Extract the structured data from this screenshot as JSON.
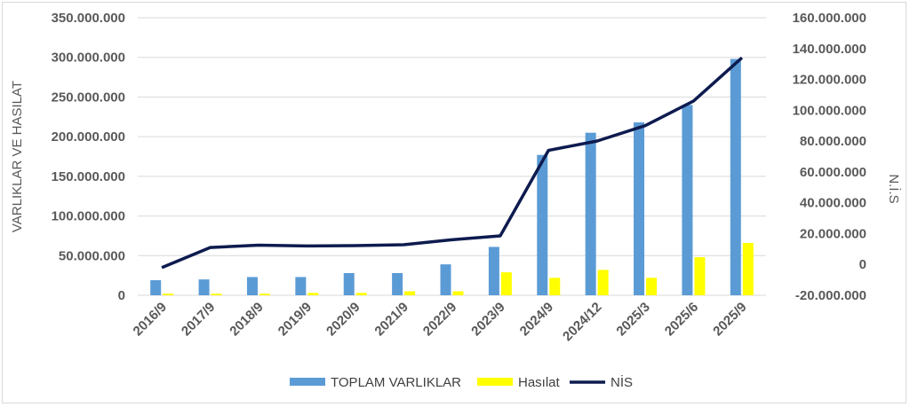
{
  "chart_data": {
    "type": "bar",
    "categories": [
      "2016/9",
      "2017/9",
      "2018/9",
      "2019/9",
      "2020/9",
      "2021/9",
      "2022/9",
      "2023/9",
      "2024/9",
      "2024/12",
      "2025/3",
      "2025/6",
      "2025/9"
    ],
    "series": [
      {
        "name": "TOPLAM VARLIKLAR",
        "type": "bar",
        "axis": "left",
        "color": "#5b9bd5",
        "values": [
          19000000,
          20000000,
          23000000,
          23000000,
          28000000,
          28000000,
          39000000,
          61000000,
          177000000,
          205000000,
          218000000,
          240000000,
          298000000
        ]
      },
      {
        "name": "Hasılat",
        "type": "bar",
        "axis": "left",
        "color": "#ffff00",
        "values": [
          2000000,
          2000000,
          2000000,
          3000000,
          3000000,
          5000000,
          5000000,
          29000000,
          22000000,
          32000000,
          22000000,
          48000000,
          66000000
        ]
      },
      {
        "name": "NİS",
        "type": "line",
        "axis": "right",
        "color": "#0d1b4f",
        "values": [
          -2000000,
          11000000,
          12500000,
          12000000,
          12200000,
          12800000,
          16000000,
          18500000,
          74000000,
          80000000,
          90000000,
          106000000,
          134000000
        ]
      }
    ],
    "left_axis": {
      "title": "VARLIKLAR VE HASILAT",
      "min": 0,
      "max": 350000000,
      "step": 50000000,
      "tick_labels": [
        "0",
        "50.000.000",
        "100.000.000",
        "150.000.000",
        "200.000.000",
        "250.000.000",
        "300.000.000",
        "350.000.000"
      ]
    },
    "right_axis": {
      "title": "N.İ.S",
      "min": -20000000,
      "max": 160000000,
      "step": 20000000,
      "tick_labels": [
        "-20.000.000",
        "0",
        "20.000.000",
        "40.000.000",
        "60.000.000",
        "80.000.000",
        "100.000.000",
        "120.000.000",
        "140.000.000",
        "160.000.000"
      ]
    },
    "grid": true,
    "legend_position": "bottom"
  }
}
